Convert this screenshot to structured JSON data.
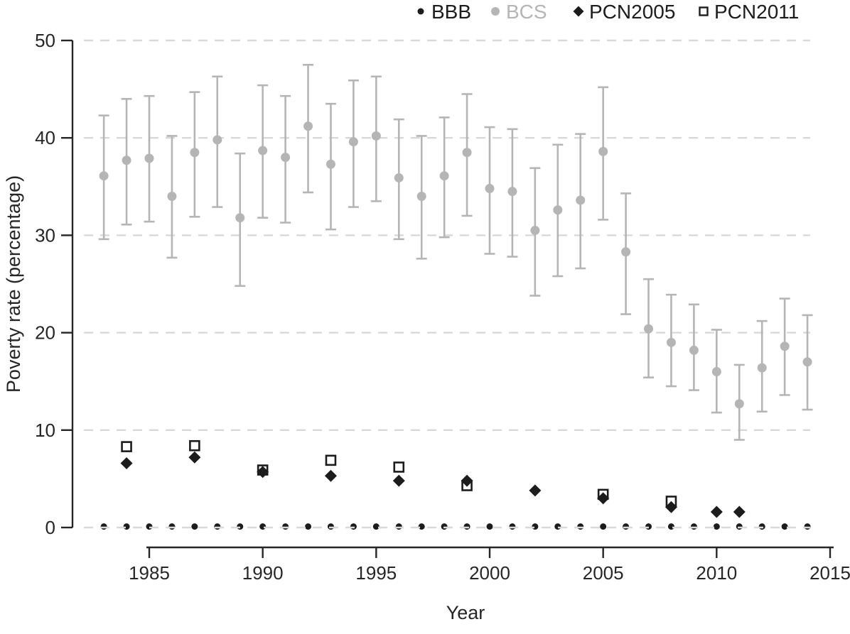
{
  "figure": {
    "x_axis_label": "Year",
    "y_axis_label": "Poverty rate (percentage)"
  },
  "legend": [
    {
      "label": "BBB",
      "marker": "filled-dot-small",
      "color": "#1c1c1c",
      "label_color": "#1c1c1c"
    },
    {
      "label": "BCS",
      "marker": "filled-dot",
      "color": "#b5b5b5",
      "label_color": "#b5b5b5"
    },
    {
      "label": "PCN2005",
      "marker": "filled-diamond",
      "color": "#1c1c1c",
      "label_color": "#1c1c1c"
    },
    {
      "label": "PCN2011",
      "marker": "open-square",
      "color": "#1c1c1c",
      "label_color": "#1c1c1c"
    }
  ],
  "colors": {
    "bcs": "#b5b5b5",
    "black": "#1c1c1c",
    "gridline": "#d9d9d9",
    "axis": "#262626",
    "background": "#ffffff"
  },
  "chart_data": {
    "type": "scatter",
    "title": "",
    "xlabel": "Year",
    "ylabel": "Poverty rate (percentage)",
    "xlim": [
      1983,
      2015
    ],
    "ylim": [
      0,
      50
    ],
    "x_ticks": [
      1985,
      1990,
      1995,
      2000,
      2005,
      2010,
      2015
    ],
    "y_ticks": [
      0,
      10,
      20,
      30,
      40,
      50
    ],
    "grid": "horizontal-dashed",
    "legend_position": "top",
    "series": [
      {
        "name": "BBB",
        "marker": "filled-circle-small",
        "color": "#1c1c1c",
        "error_bars": false,
        "points": [
          [
            1983,
            0.1
          ],
          [
            1984,
            0.1
          ],
          [
            1985,
            0.1
          ],
          [
            1986,
            0.1
          ],
          [
            1987,
            0.1
          ],
          [
            1988,
            0.1
          ],
          [
            1989,
            0.1
          ],
          [
            1990,
            0.1
          ],
          [
            1991,
            0.1
          ],
          [
            1992,
            0.1
          ],
          [
            1993,
            0.1
          ],
          [
            1994,
            0.1
          ],
          [
            1995,
            0.1
          ],
          [
            1996,
            0.1
          ],
          [
            1997,
            0.1
          ],
          [
            1998,
            0.1
          ],
          [
            1999,
            0.1
          ],
          [
            2000,
            0.1
          ],
          [
            2001,
            0.1
          ],
          [
            2002,
            0.1
          ],
          [
            2003,
            0.1
          ],
          [
            2004,
            0.1
          ],
          [
            2005,
            0.1
          ],
          [
            2006,
            0.1
          ],
          [
            2007,
            0.1
          ],
          [
            2008,
            0.1
          ],
          [
            2009,
            0.1
          ],
          [
            2010,
            0.1
          ],
          [
            2011,
            0.1
          ],
          [
            2012,
            0.1
          ],
          [
            2013,
            0.1
          ],
          [
            2014,
            0.1
          ]
        ]
      },
      {
        "name": "BCS",
        "marker": "filled-circle",
        "color": "#b5b5b5",
        "error_bars": true,
        "points_format": [
          "year",
          "value",
          "ci_low",
          "ci_high"
        ],
        "points": [
          [
            1983,
            36.1,
            29.6,
            42.3
          ],
          [
            1984,
            37.7,
            31.1,
            44.0
          ],
          [
            1985,
            37.9,
            31.4,
            44.3
          ],
          [
            1986,
            34.0,
            27.7,
            40.2
          ],
          [
            1987,
            38.5,
            31.9,
            44.7
          ],
          [
            1988,
            39.8,
            32.9,
            46.3
          ],
          [
            1989,
            31.8,
            24.8,
            38.4
          ],
          [
            1990,
            38.7,
            31.8,
            45.4
          ],
          [
            1991,
            38.0,
            31.3,
            44.3
          ],
          [
            1992,
            41.2,
            34.4,
            47.5
          ],
          [
            1993,
            37.3,
            30.6,
            43.5
          ],
          [
            1994,
            39.6,
            32.9,
            45.9
          ],
          [
            1995,
            40.2,
            33.5,
            46.3
          ],
          [
            1996,
            35.9,
            29.6,
            41.9
          ],
          [
            1997,
            34.0,
            27.6,
            40.2
          ],
          [
            1998,
            36.1,
            29.8,
            42.1
          ],
          [
            1999,
            38.5,
            32.0,
            44.5
          ],
          [
            2000,
            34.8,
            28.1,
            41.1
          ],
          [
            2001,
            34.5,
            27.8,
            40.9
          ],
          [
            2002,
            30.5,
            23.8,
            36.9
          ],
          [
            2003,
            32.6,
            25.8,
            39.3
          ],
          [
            2004,
            33.6,
            26.6,
            40.4
          ],
          [
            2005,
            38.6,
            31.6,
            45.2
          ],
          [
            2006,
            28.3,
            21.9,
            34.3
          ],
          [
            2007,
            20.4,
            15.4,
            25.5
          ],
          [
            2008,
            19.0,
            14.5,
            23.9
          ],
          [
            2009,
            18.2,
            14.1,
            22.9
          ],
          [
            2010,
            16.0,
            11.8,
            20.3
          ],
          [
            2011,
            12.7,
            9.0,
            16.7
          ],
          [
            2012,
            16.4,
            11.9,
            21.2
          ],
          [
            2013,
            18.6,
            13.6,
            23.5
          ],
          [
            2014,
            17.0,
            12.1,
            21.8
          ]
        ]
      },
      {
        "name": "PCN2005",
        "marker": "filled-diamond",
        "color": "#1c1c1c",
        "error_bars": false,
        "points": [
          [
            1984,
            6.6
          ],
          [
            1987,
            7.2
          ],
          [
            1990,
            5.7
          ],
          [
            1993,
            5.3
          ],
          [
            1996,
            4.8
          ],
          [
            1999,
            4.8
          ],
          [
            2002,
            3.8
          ],
          [
            2005,
            3.0
          ],
          [
            2008,
            2.1
          ],
          [
            2010,
            1.6
          ],
          [
            2011,
            1.6
          ]
        ]
      },
      {
        "name": "PCN2011",
        "marker": "open-square",
        "color": "#1c1c1c",
        "error_bars": false,
        "points": [
          [
            1984,
            8.3
          ],
          [
            1987,
            8.4
          ],
          [
            1990,
            5.9
          ],
          [
            1993,
            6.9
          ],
          [
            1996,
            6.2
          ],
          [
            1999,
            4.3
          ],
          [
            2005,
            3.4
          ],
          [
            2008,
            2.7
          ]
        ]
      }
    ]
  }
}
